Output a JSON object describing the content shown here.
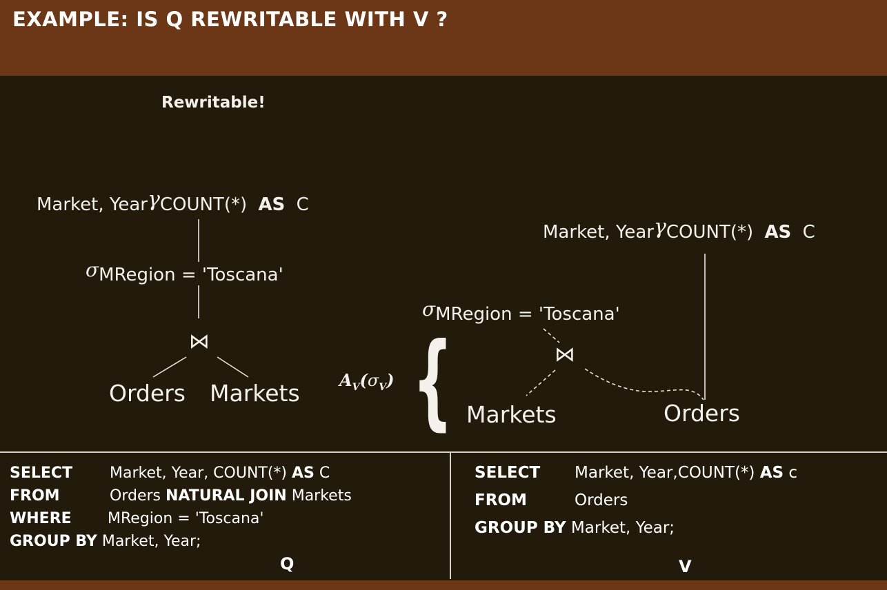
{
  "header": {
    "title": "EXAMPLE: IS Q REWRITABLE WITH V ?"
  },
  "annotation": "Rewritable!",
  "left_tree": {
    "group": {
      "attrs": "Market, Year",
      "gamma": "γ",
      "agg": "COUNT(*)",
      "as": "AS",
      "alias": "C"
    },
    "select": {
      "sigma": "σ",
      "cond": "MRegion = 'Toscana'"
    },
    "join": "⋈",
    "left": "Orders",
    "right": "Markets"
  },
  "right_tree": {
    "group": {
      "attrs": "Market, Year",
      "gamma": "γ",
      "agg": "COUNT(*)",
      "as": "AS",
      "alias": "C"
    },
    "select": {
      "sigma": "σ",
      "cond": "MRegion = 'Toscana'"
    },
    "join": "⋈",
    "left": "Markets",
    "right": "Orders",
    "brace": "{",
    "brace_label": {
      "a": "A",
      "v": "V",
      "open": "(",
      "sigma": "σ",
      "sv": "V",
      "close": ")"
    }
  },
  "query_q": {
    "rows": [
      {
        "kw": "SELECT",
        "text": "Market, Year, COUNT(*) ",
        "kw2": "AS",
        "text2": " C"
      },
      {
        "kw": "FROM",
        "text": "Orders ",
        "kw2": "NATURAL JOIN",
        "text2": " Markets"
      },
      {
        "kw": "WHERE",
        "text": "MRegion = 'Toscana'",
        "kw2": "",
        "text2": ""
      },
      {
        "kw": "GROUP BY",
        "text": " Market, Year;",
        "kw2": "",
        "text2": ""
      }
    ],
    "label": "Q"
  },
  "query_v": {
    "rows": [
      {
        "kw": "SELECT",
        "text": "Market, Year,COUNT(*) ",
        "kw2": "AS",
        "text2": " c"
      },
      {
        "kw": "FROM",
        "text": "Orders",
        "kw2": "",
        "text2": ""
      },
      {
        "kw": "GROUP BY",
        "text": " Market, Year;",
        "kw2": "",
        "text2": ""
      }
    ],
    "label": "V"
  },
  "colors": {
    "header": "#6c3717",
    "background": "#221a0b",
    "text": "#ffffff",
    "lines": "#e8e4dc"
  }
}
